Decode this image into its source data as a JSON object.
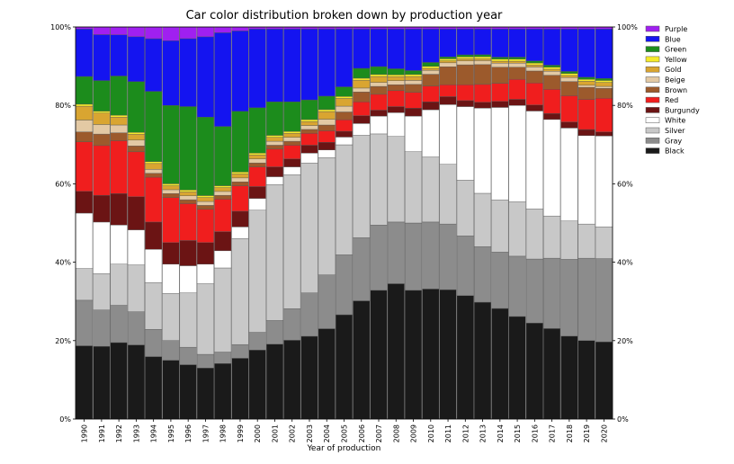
{
  "chart_data": {
    "type": "bar",
    "stacked": true,
    "title": "Car color distribution broken down by production year",
    "xlabel": "Year of production",
    "ylabel": "",
    "ylim": [
      0,
      100
    ],
    "y_ticks": [
      "0%",
      "20%",
      "40%",
      "60%",
      "80%",
      "100%"
    ],
    "y_axis_both_sides": true,
    "grid": false,
    "legend_position": "top-right outside",
    "categories": [
      "1990",
      "1991",
      "1992",
      "1993",
      "1994",
      "1995",
      "1996",
      "1997",
      "1998",
      "1999",
      "2000",
      "2001",
      "2002",
      "2003",
      "2004",
      "2005",
      "2006",
      "2007",
      "2008",
      "2009",
      "2010",
      "2011",
      "2012",
      "2013",
      "2014",
      "2015",
      "2016",
      "2017",
      "2018",
      "2019",
      "2020"
    ],
    "series": [
      {
        "name": "Black",
        "color": "#1a1a1a",
        "values": [
          18.5,
          19,
          19.5,
          19,
          16,
          15,
          14,
          13,
          14.5,
          15.5,
          17.5,
          19,
          20,
          21,
          23.5,
          27,
          30,
          32.5,
          34,
          32.5,
          33,
          32.5,
          31,
          29.5,
          27.5,
          25.5,
          24,
          22.5,
          20.5,
          19.5,
          19.5
        ]
      },
      {
        "name": "Gray",
        "color": "#8c8c8c",
        "values": [
          11.5,
          9.5,
          9.5,
          8.5,
          7,
          5,
          4.5,
          3.5,
          3,
          3.5,
          4.5,
          6,
          8,
          11,
          14,
          15.5,
          16,
          16.5,
          15.5,
          17,
          17,
          16.5,
          15,
          14,
          14,
          15,
          16,
          17.5,
          19,
          20.5,
          21
        ]
      },
      {
        "name": "Silver",
        "color": "#c8c8c8",
        "values": [
          8,
          9.5,
          10.5,
          12,
          12,
          12,
          14,
          18,
          22,
          27,
          31,
          34.5,
          34,
          33,
          30.5,
          28.5,
          26,
          23,
          21.5,
          18,
          16.5,
          15,
          14,
          13.5,
          13,
          13.5,
          12.5,
          10.5,
          9.5,
          8.5,
          8
        ]
      },
      {
        "name": "White",
        "color": "#ffffff",
        "values": [
          14,
          13.5,
          10,
          9,
          8.5,
          7.5,
          7,
          5,
          4.5,
          3,
          3,
          2,
          2,
          2.5,
          2,
          2,
          3,
          4.5,
          6,
          9,
          12,
          15,
          18.5,
          21.5,
          23,
          24,
          24.5,
          24,
          23,
          22,
          23
        ]
      },
      {
        "name": "Burgundy",
        "color": "#6b1414",
        "values": [
          5.5,
          7,
          8,
          8.5,
          7,
          5.5,
          6.5,
          5.5,
          5,
          4,
          3,
          2.5,
          2,
          2,
          2,
          1.5,
          2,
          1.5,
          1.5,
          2,
          2,
          2,
          1.5,
          1.5,
          1.5,
          1.5,
          1.5,
          1.5,
          1.5,
          1.5,
          1
        ]
      },
      {
        "name": "Red",
        "color": "#f01e1e",
        "values": [
          12.5,
          13,
          13.5,
          11.5,
          11.5,
          11.5,
          9.5,
          8.5,
          8.5,
          6.5,
          5,
          4.5,
          3.5,
          3,
          3,
          3,
          3.5,
          4,
          4,
          4,
          4,
          3,
          4,
          4.5,
          4.5,
          5,
          5.5,
          6,
          6.5,
          7.5,
          8.5
        ]
      },
      {
        "name": "Brown",
        "color": "#9c5a2c",
        "values": [
          2.5,
          3,
          2,
          1.5,
          1,
          1,
          1,
          1,
          1,
          1,
          1,
          1,
          1,
          1,
          1.5,
          2,
          2.5,
          2,
          1.5,
          2,
          3,
          4.5,
          5,
          5,
          4,
          3,
          3,
          3.5,
          3.5,
          3,
          2.5
        ]
      },
      {
        "name": "Beige",
        "color": "#e3c9a4",
        "values": [
          3,
          2.5,
          2,
          1.5,
          1,
          1,
          1,
          1,
          1,
          1,
          1,
          1,
          1,
          1,
          1.5,
          1.5,
          1,
          1,
          1,
          1,
          1,
          1,
          1,
          1,
          1,
          1,
          1,
          1,
          1,
          0.5,
          0.5
        ]
      },
      {
        "name": "Gold",
        "color": "#d9a531",
        "values": [
          3.5,
          3,
          2,
          1.5,
          1.5,
          1,
          1,
          1,
          1,
          1,
          1,
          1,
          1,
          1,
          2,
          2,
          2,
          1.5,
          1,
          1,
          0.5,
          0.5,
          0.5,
          0.5,
          0.5,
          0.5,
          0.5,
          0.5,
          0.5,
          1,
          1
        ]
      },
      {
        "name": "Yellow",
        "color": "#f5ea2a",
        "values": [
          0.5,
          0.5,
          0.5,
          0.5,
          0.5,
          0.5,
          0.5,
          0.5,
          0.5,
          0.5,
          0.5,
          0.5,
          0.5,
          0.5,
          0.5,
          0.5,
          0.5,
          0.5,
          0.5,
          0.5,
          0.5,
          0.5,
          0.5,
          0.5,
          0.5,
          0.5,
          0.5,
          0.5,
          0.5,
          0.5,
          0.5
        ]
      },
      {
        "name": "Green",
        "color": "#1c8c1c",
        "values": [
          7,
          8,
          10,
          13,
          18,
          20,
          21.5,
          20,
          15.5,
          15.5,
          11.5,
          8.5,
          7.5,
          5,
          3.5,
          2.5,
          2.5,
          2,
          1.5,
          1,
          1,
          0.5,
          0.5,
          0.5,
          0.5,
          0.5,
          0.5,
          0.5,
          0.5,
          0.5,
          0.5
        ]
      },
      {
        "name": "Blue",
        "color": "#1414f0",
        "values": [
          12,
          12,
          10.5,
          11.5,
          13.5,
          16.5,
          17.5,
          20.5,
          24.5,
          20.5,
          20,
          18.5,
          18.5,
          18,
          17.5,
          15,
          10,
          9.5,
          10,
          10.5,
          8.5,
          7,
          6.5,
          6.5,
          7,
          7,
          8,
          9,
          10.5,
          12,
          12.5
        ]
      },
      {
        "name": "Purple",
        "color": "#a020f0",
        "values": [
          0.5,
          2,
          2,
          2.5,
          3,
          3.5,
          3,
          2.5,
          1.5,
          1,
          0.5,
          0.5,
          0.5,
          0.5,
          0.5,
          0.5,
          0.5,
          0.5,
          0.5,
          0.5,
          0.5,
          0.5,
          0.5,
          0.5,
          0.5,
          0.5,
          0.5,
          0.5,
          0.5,
          0.5,
          0.5
        ]
      }
    ],
    "legend_order": [
      "Purple",
      "Blue",
      "Green",
      "Yellow",
      "Gold",
      "Beige",
      "Brown",
      "Red",
      "Burgundy",
      "White",
      "Silver",
      "Gray",
      "Black"
    ]
  }
}
